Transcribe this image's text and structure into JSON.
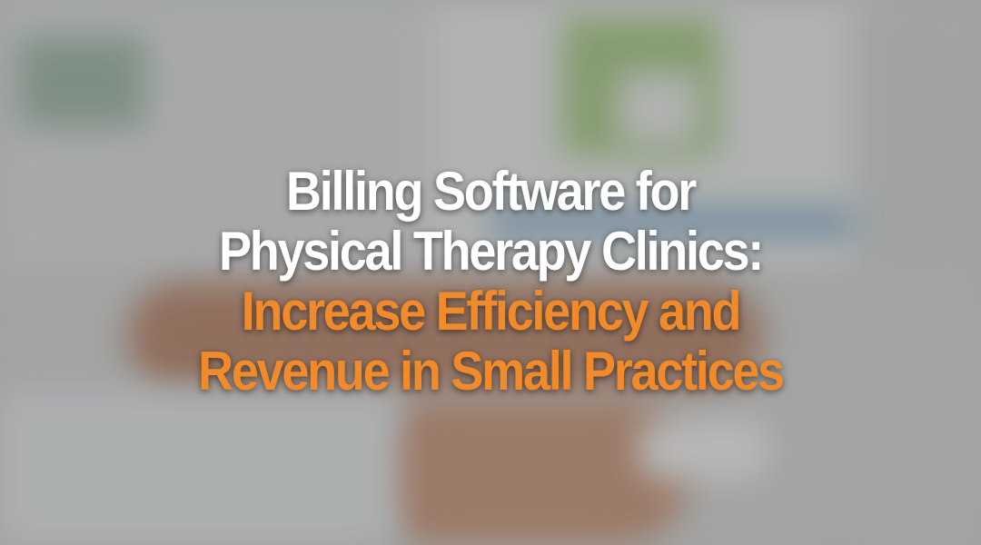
{
  "headline": {
    "line1": "Billing Software for",
    "line2": "Physical Therapy Clinics:",
    "line3": "Increase Efficiency and",
    "line4": "Revenue in Small Practices"
  },
  "colors": {
    "headline_primary": "#ffffff",
    "headline_accent": "#f08a2a"
  }
}
